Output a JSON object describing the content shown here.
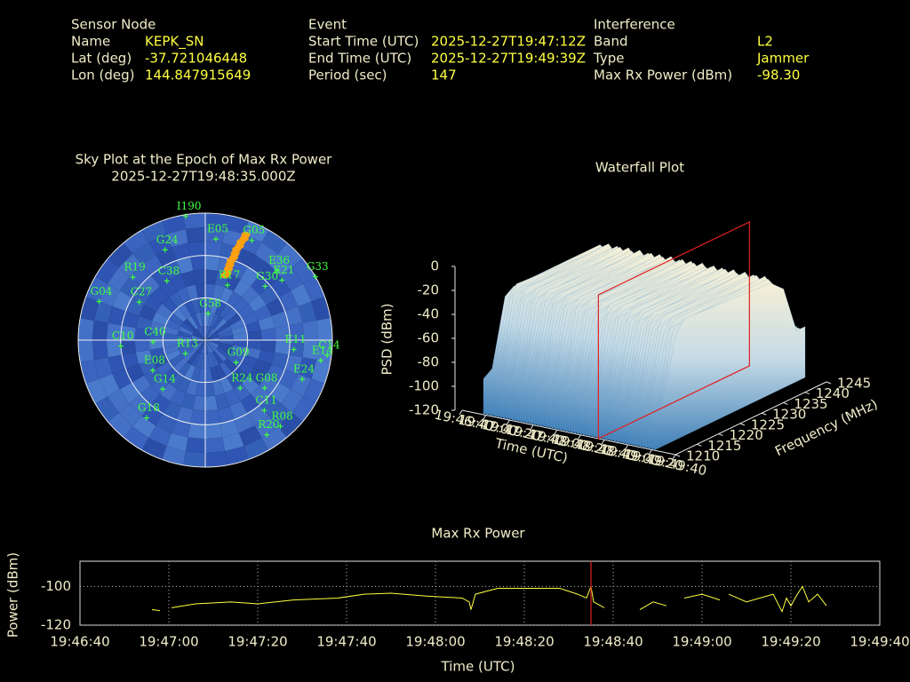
{
  "header": {
    "sensor_node": {
      "title": "Sensor Node",
      "rows": [
        [
          "Name",
          "KEPK_SN"
        ],
        [
          "Lat (deg)",
          "-37.721046448"
        ],
        [
          "Lon (deg)",
          "144.847915649"
        ]
      ]
    },
    "event": {
      "title": "Event",
      "rows": [
        [
          "Start Time (UTC)",
          "2025-12-27T19:47:12Z"
        ],
        [
          "End Time (UTC)",
          "2025-12-27T19:49:39Z"
        ],
        [
          "Period (sec)",
          "147"
        ]
      ]
    },
    "interference": {
      "title": "Interference",
      "rows": [
        [
          "Band",
          "L2"
        ],
        [
          "Type",
          "Jammer"
        ],
        [
          "Max Rx Power (dBm)",
          "-98.30"
        ]
      ]
    }
  },
  "chart_data": [
    {
      "type": "skyplot",
      "title": "Sky Plot at the Epoch of Max Rx Power",
      "subtitle": "2025-12-27T19:48:35.000Z",
      "names": [
        "I190",
        "E05",
        "G05",
        "G24",
        "E36",
        "G33",
        "E21",
        "G30",
        "R17",
        "R19",
        "C38",
        "C27",
        "G04",
        "G58",
        "C14",
        "C10",
        "C40",
        "R13",
        "E11",
        "E14",
        "G09",
        "E08",
        "G14",
        "R24",
        "G08",
        "E24",
        "C11",
        "G18",
        "R08",
        "R20"
      ],
      "az": [
        351,
        6,
        25,
        336,
        46,
        60,
        52,
        48,
        22,
        311,
        327,
        300,
        290,
        6,
        97,
        266,
        268,
        236,
        96,
        100,
        126,
        240,
        221,
        144,
        129,
        112,
        140,
        217,
        139,
        147
      ],
      "el": [
        1,
        18,
        12,
        20,
        19,
        0,
        21,
        33,
        48,
        22,
        40,
        36,
        10,
        71,
        3,
        30,
        53,
        73,
        27,
        7,
        63,
        47,
        44,
        48,
        36,
        16,
        25,
        21,
        9,
        10
      ],
      "color": "#40ff40",
      "jammer_az": [
        21,
        21,
        20,
        20,
        19,
        19,
        19,
        18,
        18,
        18,
        18,
        17
      ],
      "jammer_el": [
        10,
        13,
        16,
        19,
        22,
        25,
        28,
        31,
        34,
        37,
        40,
        42
      ],
      "jammer_color": "#ffa010"
    },
    {
      "type": "waterfall",
      "title": "Waterfall Plot",
      "xlabel": "Time (UTC)",
      "ylabel": "Frequency (MHz)",
      "zlabel": "PSD (dBm)",
      "xlim": [
        71200,
        71380
      ],
      "xticks": [
        {
          "value": 71200,
          "label": "19:46:40"
        },
        {
          "value": 71220,
          "label": "19:47:00"
        },
        {
          "value": 71240,
          "label": "19:47:20"
        },
        {
          "value": 71260,
          "label": "19:47:40"
        },
        {
          "value": 71280,
          "label": "19:48:00"
        },
        {
          "value": 71300,
          "label": "19:48:20"
        },
        {
          "value": 71320,
          "label": "19:48:40"
        },
        {
          "value": 71340,
          "label": "19:49:00"
        },
        {
          "value": 71360,
          "label": "19:49:20"
        },
        {
          "value": 71380,
          "label": "19:49:40"
        }
      ],
      "ylim": [
        1210,
        1245
      ],
      "yticks": [
        1210,
        1215,
        1220,
        1225,
        1230,
        1235,
        1240,
        1245
      ],
      "zlim": [
        -120,
        0
      ],
      "zticks": [
        -120,
        -100,
        -80,
        -60,
        -40,
        -20,
        0
      ],
      "frequencies": [
        1210,
        1212,
        1215,
        1217,
        1237,
        1240,
        1243,
        1245
      ],
      "psd": [
        -90,
        -85,
        -30,
        -25,
        -25,
        -40,
        -75,
        -80
      ],
      "max_epoch": 71315,
      "marker_color": "#e02020"
    },
    {
      "type": "line",
      "title": "Max Rx Power",
      "xlabel": "Time (UTC)",
      "ylabel": "Power (dBm)",
      "xlim": [
        71200,
        71380
      ],
      "xticks": [
        {
          "value": 71200,
          "label": "19:46:40"
        },
        {
          "value": 71220,
          "label": "19:47:00"
        },
        {
          "value": 71240,
          "label": "19:47:20"
        },
        {
          "value": 71260,
          "label": "19:47:40"
        },
        {
          "value": 71280,
          "label": "19:48:00"
        },
        {
          "value": 71300,
          "label": "19:48:20"
        },
        {
          "value": 71320,
          "label": "19:48:40"
        },
        {
          "value": 71340,
          "label": "19:49:00"
        },
        {
          "value": 71360,
          "label": "19:49:20"
        },
        {
          "value": 71380,
          "label": "19:49:40"
        }
      ],
      "ylim": [
        -120,
        -87
      ],
      "yticks": [
        -120,
        -100
      ],
      "grid": true,
      "x": [
        71216.2,
        71218,
        71219,
        71220.6,
        71226,
        71234,
        71240,
        71248,
        71258,
        71264,
        71270,
        71278,
        71286,
        71287.6,
        71288,
        71289,
        71294,
        71302,
        71308,
        71312,
        71314,
        71315,
        71315.6,
        71318,
        71322,
        71326,
        71329,
        71332,
        71334,
        71336,
        71340,
        71344,
        71345,
        71346,
        71350,
        71356,
        71358,
        71359,
        71360,
        71361.2,
        71362.6,
        71364,
        71366,
        71368
      ],
      "values": [
        -112,
        -112.5,
        null,
        -111,
        -109,
        -108,
        -109,
        -107,
        -106,
        -104,
        -103.5,
        -105,
        -106,
        -108,
        -112,
        -104,
        -101,
        -101,
        -101,
        -104,
        -106,
        -100,
        -108,
        -111,
        null,
        -112,
        -108,
        -110,
        null,
        -106,
        -104,
        -107,
        null,
        -104,
        -108,
        -104,
        -113,
        -106,
        -110,
        -105,
        -100,
        -108,
        -104,
        -110
      ],
      "color": "#ffff40",
      "max_epoch": 71315,
      "marker_color": "#e02020"
    }
  ]
}
